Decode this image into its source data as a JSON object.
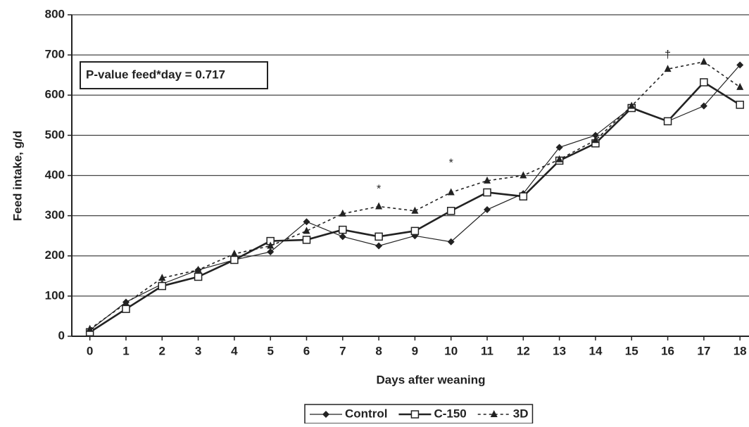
{
  "chart_data": {
    "type": "line",
    "x_label": "Days after weaning",
    "y_label": "Feed intake, g/d",
    "x": [
      0,
      1,
      2,
      3,
      4,
      5,
      6,
      7,
      8,
      9,
      10,
      11,
      12,
      13,
      14,
      15,
      16,
      17,
      18
    ],
    "series": [
      {
        "name": "Control",
        "color": "#222222",
        "line_style": "solid",
        "line_width": 1.2,
        "marker": "diamond",
        "values": [
          15,
          85,
          130,
          165,
          190,
          210,
          285,
          248,
          225,
          250,
          235,
          315,
          355,
          470,
          500,
          570,
          535,
          573,
          675
        ]
      },
      {
        "name": "C-150",
        "color": "#222222",
        "line_style": "solid",
        "line_width": 2.6,
        "marker": "square",
        "values": [
          10,
          68,
          125,
          148,
          190,
          237,
          240,
          265,
          248,
          262,
          312,
          358,
          348,
          437,
          480,
          568,
          535,
          632,
          576
        ]
      },
      {
        "name": "3D",
        "color": "#222222",
        "line_style": "dotted",
        "line_width": 1.6,
        "marker": "triangle",
        "values": [
          18,
          82,
          145,
          165,
          205,
          225,
          262,
          305,
          323,
          312,
          358,
          387,
          400,
          440,
          488,
          573,
          665,
          683,
          620
        ]
      }
    ],
    "xlim": [
      -0.5,
      18.25
    ],
    "ylim": [
      0,
      800
    ],
    "xticks": [
      0,
      1,
      2,
      3,
      4,
      5,
      6,
      7,
      8,
      9,
      10,
      11,
      12,
      13,
      14,
      15,
      16,
      17,
      18
    ],
    "yticks": [
      0,
      100,
      200,
      300,
      400,
      500,
      600,
      700,
      800
    ],
    "grid": true,
    "legend": "bottom",
    "annotations": [
      {
        "text": "P-value feed*day = 0.717",
        "boxed": true
      },
      {
        "text": "*",
        "x": 8,
        "y": 365
      },
      {
        "text": "*",
        "x": 10,
        "y": 430
      },
      {
        "text": "†",
        "x": 16,
        "y": 700
      }
    ]
  }
}
